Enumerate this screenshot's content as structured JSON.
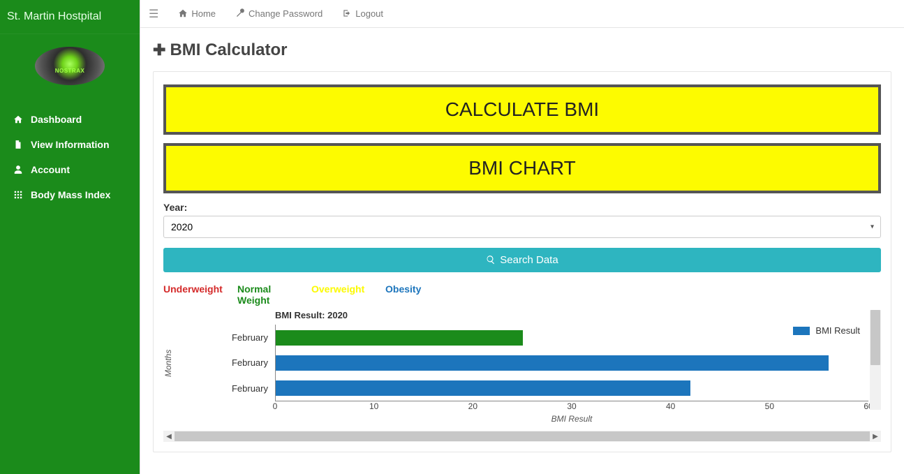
{
  "brand": "St. Martin Hostpital",
  "sidebar": {
    "items": [
      {
        "label": "Dashboard",
        "icon": "home"
      },
      {
        "label": "View Information",
        "icon": "file"
      },
      {
        "label": "Account",
        "icon": "user"
      },
      {
        "label": "Body Mass Index",
        "icon": "grid"
      }
    ]
  },
  "topbar": {
    "home": "Home",
    "change_password": "Change Password",
    "logout": "Logout"
  },
  "page": {
    "title": "BMI Calculator",
    "calc_btn": "CALCULATE BMI",
    "chart_btn": "BMI CHART",
    "year_label": "Year:",
    "year_value": "2020",
    "search_btn": "Search Data"
  },
  "categories": {
    "underweight": "Underweight",
    "normal": "Normal Weight",
    "overweight": "Overweight",
    "obesity": "Obesity",
    "colors": {
      "underweight": "#d42a2a",
      "normal": "#1b8b1b",
      "overweight": "#fdfb00",
      "obesity": "#1c75bc"
    }
  },
  "chart": {
    "type": "horizontal-bar",
    "title": "BMI Result: 2020",
    "legend_label": "BMI Result",
    "y_axis_label": "Months",
    "x_axis_label": "BMI Result",
    "x_ticks": [
      "0",
      "10",
      "20",
      "30",
      "40",
      "50",
      "60"
    ],
    "x_max": 60,
    "bars": [
      {
        "label": "February",
        "value": 25,
        "color": "#1b8b1b"
      },
      {
        "label": "February",
        "value": 56,
        "color": "#1c75bc"
      },
      {
        "label": "February",
        "value": 42,
        "color": "#1c75bc"
      }
    ],
    "background_color": "#ffffff",
    "axis_color": "#888888",
    "tick_fontsize": 12,
    "title_fontsize": 13
  },
  "theme": {
    "sidebar_bg": "#1b8b1b",
    "bigbtn_bg": "#fdfb00",
    "bigbtn_border": "#555555",
    "search_bg": "#2eb5c0"
  }
}
